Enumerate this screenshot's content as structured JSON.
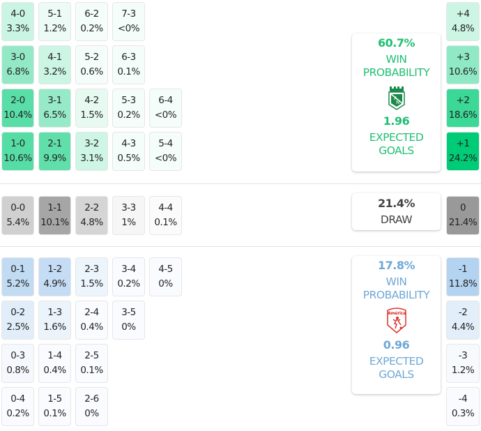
{
  "colors": {
    "home": "#00cc78",
    "draw": "#969696",
    "away": "#64a5e1",
    "home_text": "#1fbf72",
    "away_text": "#6fa8d6",
    "draw_text": "#444444"
  },
  "home_grid": [
    [
      {
        "score": "4-0",
        "pct": "3.3%"
      },
      {
        "score": "5-1",
        "pct": "1.2%"
      },
      {
        "score": "6-2",
        "pct": "0.2%"
      },
      {
        "score": "7-3",
        "pct": "<0%"
      }
    ],
    [
      {
        "score": "3-0",
        "pct": "6.8%"
      },
      {
        "score": "4-1",
        "pct": "3.2%"
      },
      {
        "score": "5-2",
        "pct": "0.6%"
      },
      {
        "score": "6-3",
        "pct": "0.1%"
      }
    ],
    [
      {
        "score": "2-0",
        "pct": "10.4%"
      },
      {
        "score": "3-1",
        "pct": "6.5%"
      },
      {
        "score": "4-2",
        "pct": "1.5%"
      },
      {
        "score": "5-3",
        "pct": "0.2%"
      },
      {
        "score": "6-4",
        "pct": "<0%"
      }
    ],
    [
      {
        "score": "1-0",
        "pct": "10.6%"
      },
      {
        "score": "2-1",
        "pct": "9.9%"
      },
      {
        "score": "3-2",
        "pct": "3.1%"
      },
      {
        "score": "4-3",
        "pct": "0.5%"
      },
      {
        "score": "5-4",
        "pct": "<0%"
      }
    ]
  ],
  "draw_grid": [
    {
      "score": "0-0",
      "pct": "5.4%"
    },
    {
      "score": "1-1",
      "pct": "10.1%"
    },
    {
      "score": "2-2",
      "pct": "4.8%"
    },
    {
      "score": "3-3",
      "pct": "1%"
    },
    {
      "score": "4-4",
      "pct": "0.1%"
    }
  ],
  "away_grid": [
    [
      {
        "score": "0-1",
        "pct": "5.2%"
      },
      {
        "score": "1-2",
        "pct": "4.9%"
      },
      {
        "score": "2-3",
        "pct": "1.5%"
      },
      {
        "score": "3-4",
        "pct": "0.2%"
      },
      {
        "score": "4-5",
        "pct": "0%"
      }
    ],
    [
      {
        "score": "0-2",
        "pct": "2.5%"
      },
      {
        "score": "1-3",
        "pct": "1.6%"
      },
      {
        "score": "2-4",
        "pct": "0.4%"
      },
      {
        "score": "3-5",
        "pct": "0%"
      }
    ],
    [
      {
        "score": "0-3",
        "pct": "0.8%"
      },
      {
        "score": "1-4",
        "pct": "0.4%"
      },
      {
        "score": "2-5",
        "pct": "0.1%"
      }
    ],
    [
      {
        "score": "0-4",
        "pct": "0.2%"
      },
      {
        "score": "1-5",
        "pct": "0.1%"
      },
      {
        "score": "2-6",
        "pct": "0%"
      }
    ]
  ],
  "home_diff": [
    {
      "score": "+4",
      "pct": "4.8%"
    },
    {
      "score": "+3",
      "pct": "10.6%"
    },
    {
      "score": "+2",
      "pct": "18.6%"
    },
    {
      "score": "+1",
      "pct": "24.2%"
    }
  ],
  "draw_diff": {
    "score": "0",
    "pct": "21.4%"
  },
  "away_diff": [
    {
      "score": "-1",
      "pct": "11.8%"
    },
    {
      "score": "-2",
      "pct": "4.4%"
    },
    {
      "score": "-3",
      "pct": "1.2%"
    },
    {
      "score": "-4",
      "pct": "0.3%"
    }
  ],
  "home_card": {
    "win_pct": "60.7%",
    "win_label_1": "WIN",
    "win_label_2": "PROBABILITY",
    "xg": "1.96",
    "xg_label_1": "EXPECTED",
    "xg_label_2": "GOALS",
    "crest": "atletico-nacional-crest"
  },
  "draw_card": {
    "pct": "21.4%",
    "label": "DRAW"
  },
  "away_card": {
    "win_pct": "17.8%",
    "win_label_1": "WIN",
    "win_label_2": "PROBABILITY",
    "xg": "0.96",
    "xg_label_1": "EXPECTED",
    "xg_label_2": "GOALS",
    "crest": "america-de-cali-crest",
    "crest_text": "América"
  }
}
